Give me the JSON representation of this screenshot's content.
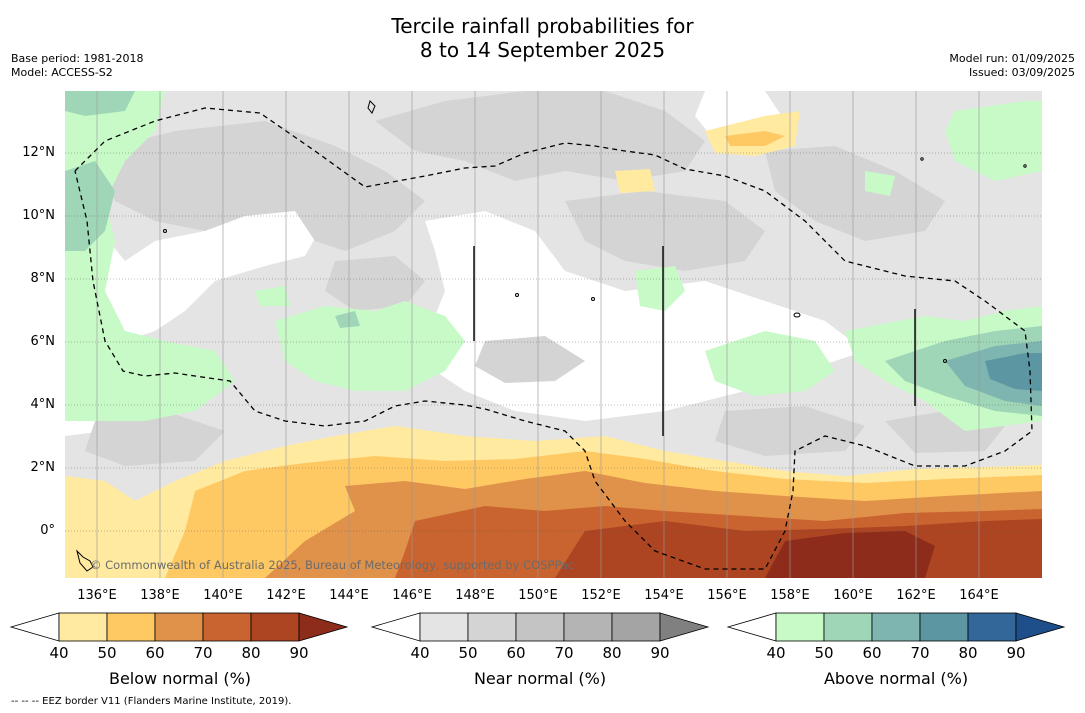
{
  "title": {
    "line1": "Tercile rainfall probabilities for",
    "line2": "8 to 14 September 2025"
  },
  "meta_left": {
    "base_period": "Base period: 1981-2018",
    "model": "Model: ACCESS-S2"
  },
  "meta_right": {
    "model_run": "Model run: 01/09/2025",
    "issued": "Issued: 03/09/2025"
  },
  "map": {
    "latitude_labels": [
      "12°N",
      "10°N",
      "8°N",
      "6°N",
      "4°N",
      "2°N",
      "0°"
    ],
    "longitude_labels": [
      "136°E",
      "138°E",
      "140°E",
      "142°E",
      "144°E",
      "146°E",
      "148°E",
      "150°E",
      "152°E",
      "154°E",
      "156°E",
      "158°E",
      "160°E",
      "162°E",
      "164°E"
    ],
    "copyright": "© Commonwealth of Australia 2025, Bureau of Meteorology, supported by COSPPac",
    "colors": {
      "near_40": "#e4e4e4",
      "near_50": "#d4d4d4",
      "below_40": "#ffeaa0",
      "below_50": "#fec963",
      "below_60": "#e0914a",
      "below_70": "#c96430",
      "below_80": "#ad4522",
      "below_90": "#8e2c1c",
      "above_40": "#c8fac8",
      "above_50": "#a0d6b8",
      "above_60": "#7fb5b0",
      "above_70": "#5c96a2"
    }
  },
  "colorbars": [
    {
      "name": "below",
      "title": "Below normal (%)",
      "ticks": [
        "40",
        "50",
        "60",
        "70",
        "80",
        "90"
      ],
      "colors": [
        "#ffeaa0",
        "#fec963",
        "#e0914a",
        "#c96430",
        "#ad4522"
      ],
      "extend_color": "#8e2c1c"
    },
    {
      "name": "near",
      "title": "Near normal (%)",
      "ticks": [
        "40",
        "50",
        "60",
        "70",
        "80",
        "90"
      ],
      "colors": [
        "#e4e4e4",
        "#d4d4d4",
        "#c4c4c4",
        "#b4b4b4",
        "#a4a4a4"
      ],
      "extend_color": "#808080"
    },
    {
      "name": "above",
      "title": "Above normal (%)",
      "ticks": [
        "40",
        "50",
        "60",
        "70",
        "80",
        "90"
      ],
      "colors": [
        "#c8fac8",
        "#a0d6b8",
        "#7fb5b0",
        "#5c96a2",
        "#336699"
      ],
      "extend_color": "#1f4f8a"
    }
  ],
  "footnote": "-- -- -- EEZ border V11 (Flanders Marine Institute, 2019)."
}
